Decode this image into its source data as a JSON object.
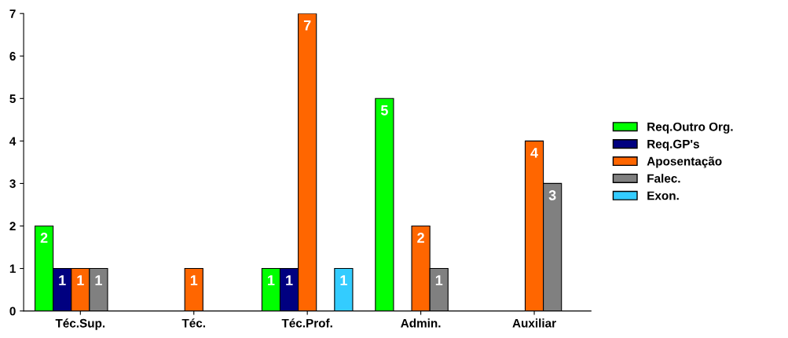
{
  "chart_data": {
    "type": "bar",
    "categories": [
      "Téc.Sup.",
      "Téc.",
      "Téc.Prof.",
      "Admin.",
      "Auxiliar"
    ],
    "series": [
      {
        "name": "Req.Outro Org.",
        "color": "#00ff00",
        "values": [
          2,
          null,
          1,
          5,
          null
        ]
      },
      {
        "name": "Req.GP's",
        "color": "#000080",
        "values": [
          1,
          null,
          1,
          null,
          null
        ]
      },
      {
        "name": "Aposentação",
        "color": "#ff6600",
        "values": [
          1,
          1,
          7,
          2,
          4
        ]
      },
      {
        "name": "Falec.",
        "color": "#808080",
        "values": [
          1,
          null,
          null,
          1,
          3
        ]
      },
      {
        "name": "Exon.",
        "color": "#33ccff",
        "values": [
          null,
          null,
          1,
          null,
          null
        ]
      }
    ],
    "ylim": [
      0,
      7
    ],
    "yticks": [
      0,
      1,
      2,
      3,
      4,
      5,
      6,
      7
    ],
    "grid": false,
    "legend": "right",
    "data_labels": true
  }
}
